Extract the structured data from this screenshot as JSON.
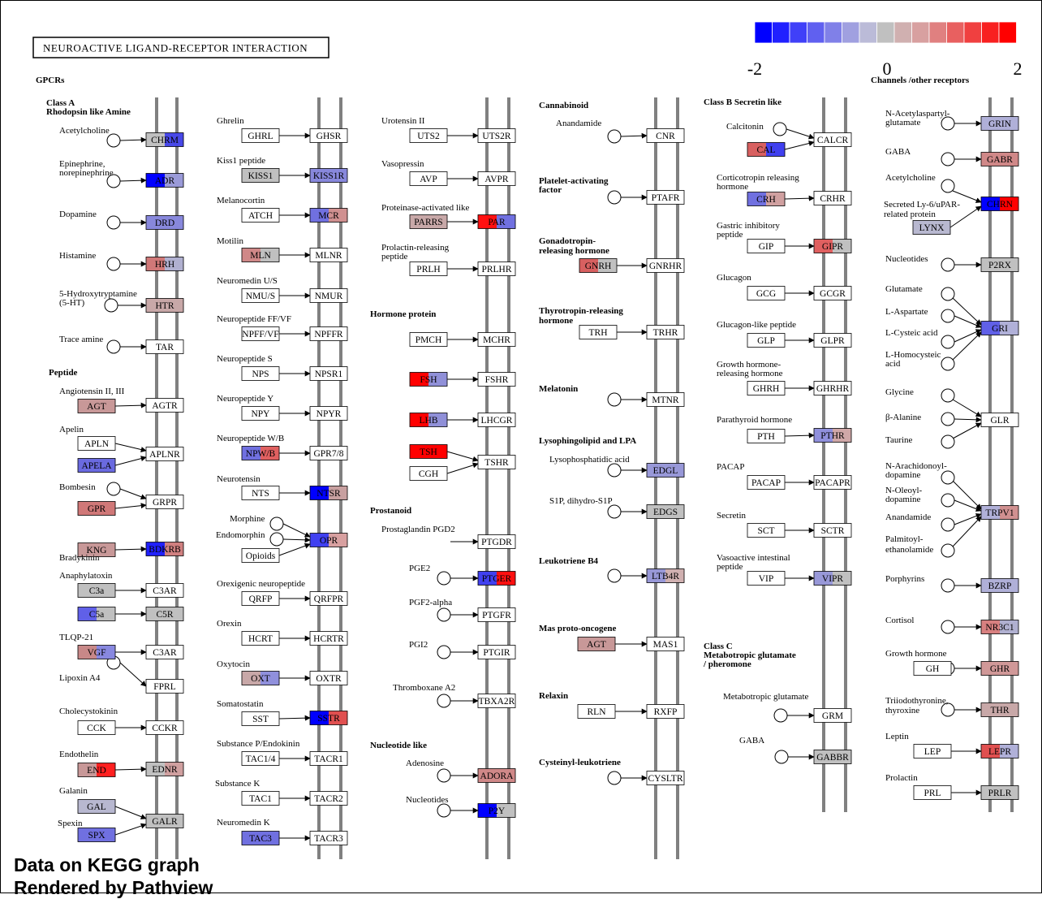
{
  "title": "NEUROACTIVE LIGAND-RECEPTOR INTERACTION",
  "legend": {
    "min": "-2",
    "mid": "0",
    "max": "2",
    "colors": [
      "#0000ff",
      "#2020ff",
      "#4040f8",
      "#6060f0",
      "#8080e8",
      "#a0a0e0",
      "#bbbbd8",
      "#c0c0c0",
      "#d0b0b0",
      "#d8a0a0",
      "#e08080",
      "#e86060",
      "#f04040",
      "#f82020",
      "#ff0000"
    ]
  },
  "footer": {
    "line1": "Data on KEGG graph",
    "line2": "Rendered by Pathview"
  },
  "headings": [
    {
      "text": "GPCRs"
    },
    {
      "text": "Class A"
    },
    {
      "text": "Rhodopsin like Amine"
    },
    {
      "text": "Peptide"
    },
    {
      "text": "Hormone protein"
    },
    {
      "text": "Prostanoid"
    },
    {
      "text": "Nucleotide like"
    },
    {
      "text": "Cannabinoid"
    },
    {
      "text": "Platelet-activating"
    },
    {
      "text": "factor"
    },
    {
      "text": "Gonadotropin-"
    },
    {
      "text": "releasing hormone"
    },
    {
      "text": "Thyrotropin-releasing"
    },
    {
      "text": "hormone"
    },
    {
      "text": "Melatonin"
    },
    {
      "text": "Lysophingolipid and LPA"
    },
    {
      "text": "Leukotriene B4"
    },
    {
      "text": "Mas proto-oncogene"
    },
    {
      "text": "Relaxin"
    },
    {
      "text": "Cysteinyl-leukotriene"
    },
    {
      "text": "Class B Secretin like"
    },
    {
      "text": "Class C"
    },
    {
      "text": "Metabotropic glutamate"
    },
    {
      "text": "/ pheromone"
    },
    {
      "text": "Channels /other receptors"
    }
  ],
  "labels": [
    "Acetylcholine",
    "Epinephrine,",
    "norepinephrine",
    "Dopamine",
    "Histamine",
    "5-Hydroxytryptamine",
    "(5-HT)",
    "Trace amine",
    "Angiotensin II, III",
    "Apelin",
    "Bombesin",
    "Bradykinin",
    "Anaphylatoxin",
    "TLQP-21",
    "Lipoxin A4",
    "Cholecystokinin",
    "Endothelin",
    "Galanin",
    "Spexin",
    "Ghrelin",
    "Kiss1 peptide",
    "Melanocortin",
    "Motilin",
    "Neuromedin U/S",
    "Neuropeptide FF/VF",
    "Neuropeptide S",
    "Neuropeptide Y",
    "Neuropeptide W/B",
    "Neurotensin",
    "Morphine",
    "Endomorphin",
    "Orexigenic neuropeptide",
    "Orexin",
    "Oxytocin",
    "Somatostatin",
    "Substance P/Endokinin",
    "Substance K",
    "Neuromedin K",
    "Urotensin II",
    "Vasopressin",
    "Proteinase-activated like",
    "Prolactin-releasing",
    "peptide",
    "Prostaglandin PGD2",
    "PGE2",
    "PGF2-alpha",
    "PGI2",
    "Thromboxane A2",
    "Adenosine",
    "Nucleotides",
    "Anandamide",
    "Lysophosphatidic acid",
    "S1P, dihydro-S1P",
    "Calcitonin",
    "Corticotropin releasing",
    "hormone",
    "Gastric inhibitory",
    "peptide",
    "Glucagon",
    "Glucagon-like peptide",
    "Growth hormone-",
    "releasing hormone",
    "Parathyroid hormone",
    "PACAP",
    "Secretin",
    "Vasoactive intestinal",
    "peptide",
    "Metabotropic glutamate",
    "GABA",
    "N-Acetylaspartyl-",
    "glutamate",
    "GABA",
    "Acetylcholine",
    "Secreted Ly-6/uPAR-",
    "related protein",
    "Nucleotides",
    "Glutamate",
    "L-Aspartate",
    "L-Cysteic acid",
    "L-Homocysteic",
    "acid",
    "Glycine",
    "β-Alanine",
    "Taurine",
    "N-Arachidonoyl-",
    "dopamine",
    "N-Oleoyl-",
    "dopamine",
    "Anandamide",
    "Palmitoyl-",
    "ethanolamide",
    "Porphyrins",
    "Cortisol",
    "Growth hormone",
    "Triiodothyronine,",
    "thyroxine",
    "Leptin",
    "Prolactin"
  ],
  "genes": [
    {
      "name": "CHRM",
      "colors": [
        "#c0c0c0",
        "#4848e8"
      ]
    },
    {
      "name": "ADR",
      "colors": [
        "#0000ff",
        "#9a9ad8"
      ]
    },
    {
      "name": "DRD",
      "colors": [
        "#8888dc"
      ]
    },
    {
      "name": "HRH",
      "colors": [
        "#d07878",
        "#b0b0d0"
      ]
    },
    {
      "name": "HTR",
      "colors": [
        "#c8a8a8"
      ]
    },
    {
      "name": "TAR",
      "colors": [
        "#ffffff"
      ]
    },
    {
      "name": "AGT",
      "colors": [
        "#c89898"
      ]
    },
    {
      "name": "AGTR",
      "colors": [
        "#ffffff"
      ]
    },
    {
      "name": "APLN",
      "colors": [
        "#ffffff"
      ]
    },
    {
      "name": "APELA",
      "colors": [
        "#6a6ae0"
      ]
    },
    {
      "name": "APLNR",
      "colors": [
        "#ffffff"
      ]
    },
    {
      "name": "GPR",
      "colors": [
        "#d07878"
      ]
    },
    {
      "name": "GRPR",
      "colors": [
        "#ffffff"
      ]
    },
    {
      "name": "KNG",
      "colors": [
        "#c89898"
      ]
    },
    {
      "name": "BDKRB",
      "colors": [
        "#2020ff",
        "#d08080"
      ]
    },
    {
      "name": "C3a",
      "colors": [
        "#c0c0c0"
      ]
    },
    {
      "name": "C3AR",
      "colors": [
        "#ffffff"
      ]
    },
    {
      "name": "C5a",
      "colors": [
        "#6060e8",
        "#c0c0c0"
      ]
    },
    {
      "name": "C5R",
      "colors": [
        "#c0c0c0"
      ]
    },
    {
      "name": "VGF",
      "colors": [
        "#c88888",
        "#8888e0"
      ]
    },
    {
      "name": "C3AR",
      "colors": [
        "#ffffff"
      ]
    },
    {
      "name": "FPRL",
      "colors": [
        "#ffffff"
      ]
    },
    {
      "name": "CCK",
      "colors": [
        "#ffffff"
      ]
    },
    {
      "name": "CCKR",
      "colors": [
        "#ffffff"
      ]
    },
    {
      "name": "END",
      "colors": [
        "#c89898",
        "#ff2020"
      ]
    },
    {
      "name": "EDNR",
      "colors": [
        "#c0c0c0",
        "#d0a0a0"
      ]
    },
    {
      "name": "GAL",
      "colors": [
        "#b8b8d0"
      ]
    },
    {
      "name": "SPX",
      "colors": [
        "#7070e0"
      ]
    },
    {
      "name": "GALR",
      "colors": [
        "#c0c0c0"
      ]
    },
    {
      "name": "GHRL",
      "colors": [
        "#ffffff"
      ]
    },
    {
      "name": "GHSR",
      "colors": [
        "#ffffff"
      ]
    },
    {
      "name": "KISS1",
      "colors": [
        "#c0c0c0"
      ]
    },
    {
      "name": "KISS1R",
      "colors": [
        "#8888dc"
      ]
    },
    {
      "name": "ATCH",
      "colors": [
        "#ffffff"
      ]
    },
    {
      "name": "MCR",
      "colors": [
        "#7070e0",
        "#d09090"
      ]
    },
    {
      "name": "MLN",
      "colors": [
        "#d08888",
        "#c0c0c0"
      ]
    },
    {
      "name": "MLNR",
      "colors": [
        "#ffffff"
      ]
    },
    {
      "name": "NMU/S",
      "colors": [
        "#ffffff"
      ]
    },
    {
      "name": "NMUR",
      "colors": [
        "#ffffff"
      ]
    },
    {
      "name": "NPFF/VF",
      "colors": [
        "#ffffff"
      ]
    },
    {
      "name": "NPFFR",
      "colors": [
        "#ffffff"
      ]
    },
    {
      "name": "NPS",
      "colors": [
        "#ffffff"
      ]
    },
    {
      "name": "NPSR1",
      "colors": [
        "#ffffff"
      ]
    },
    {
      "name": "NPY",
      "colors": [
        "#ffffff"
      ]
    },
    {
      "name": "NPYR",
      "colors": [
        "#ffffff"
      ]
    },
    {
      "name": "NPW/B",
      "colors": [
        "#7070e0",
        "#e06060"
      ]
    },
    {
      "name": "GPR7/8",
      "colors": [
        "#ffffff"
      ]
    },
    {
      "name": "NTS",
      "colors": [
        "#ffffff"
      ]
    },
    {
      "name": "NTSR",
      "colors": [
        "#0000ff",
        "#c8a0a0"
      ]
    },
    {
      "name": "OPR",
      "colors": [
        "#4040f0",
        "#d8a0a0"
      ]
    },
    {
      "name": "Opioids",
      "colors": [
        "#ffffff"
      ]
    },
    {
      "name": "QRFP",
      "colors": [
        "#ffffff"
      ]
    },
    {
      "name": "QRFPR",
      "colors": [
        "#ffffff"
      ]
    },
    {
      "name": "HCRT",
      "colors": [
        "#ffffff"
      ]
    },
    {
      "name": "HCRTR",
      "colors": [
        "#ffffff"
      ]
    },
    {
      "name": "OXT",
      "colors": [
        "#c8a8a8",
        "#9090dc"
      ]
    },
    {
      "name": "OXTR",
      "colors": [
        "#ffffff"
      ]
    },
    {
      "name": "SST",
      "colors": [
        "#ffffff"
      ]
    },
    {
      "name": "SSTR",
      "colors": [
        "#0000ff",
        "#e05050"
      ]
    },
    {
      "name": "TAC1/4",
      "colors": [
        "#ffffff"
      ]
    },
    {
      "name": "TACR1",
      "colors": [
        "#ffffff"
      ]
    },
    {
      "name": "TAC1",
      "colors": [
        "#ffffff"
      ]
    },
    {
      "name": "TACR2",
      "colors": [
        "#ffffff"
      ]
    },
    {
      "name": "TAC3",
      "colors": [
        "#7070e0"
      ]
    },
    {
      "name": "TACR3",
      "colors": [
        "#ffffff"
      ]
    },
    {
      "name": "UTS2",
      "colors": [
        "#ffffff"
      ]
    },
    {
      "name": "UTS2R",
      "colors": [
        "#ffffff"
      ]
    },
    {
      "name": "AVP",
      "colors": [
        "#ffffff"
      ]
    },
    {
      "name": "AVPR",
      "colors": [
        "#ffffff"
      ]
    },
    {
      "name": "PARRS",
      "colors": [
        "#c8a8a8"
      ]
    },
    {
      "name": "PAR",
      "colors": [
        "#ff1010",
        "#7070e0"
      ]
    },
    {
      "name": "PRLH",
      "colors": [
        "#ffffff"
      ]
    },
    {
      "name": "PRLHR",
      "colors": [
        "#ffffff"
      ]
    },
    {
      "name": "PMCH",
      "colors": [
        "#ffffff"
      ]
    },
    {
      "name": "MCHR",
      "colors": [
        "#ffffff"
      ]
    },
    {
      "name": "FSH",
      "colors": [
        "#ff0000",
        "#9090d8"
      ]
    },
    {
      "name": "FSHR",
      "colors": [
        "#ffffff"
      ]
    },
    {
      "name": "LHB",
      "colors": [
        "#ff0000",
        "#9090d8"
      ]
    },
    {
      "name": "LHCGR",
      "colors": [
        "#ffffff"
      ]
    },
    {
      "name": "TSH",
      "colors": [
        "#ff0000"
      ]
    },
    {
      "name": "CGH",
      "colors": [
        "#ffffff"
      ]
    },
    {
      "name": "TSHR",
      "colors": [
        "#ffffff"
      ]
    },
    {
      "name": "PTGDR",
      "colors": [
        "#ffffff"
      ]
    },
    {
      "name": "PTGER",
      "colors": [
        "#4040f0",
        "#ff1010"
      ]
    },
    {
      "name": "PTGFR",
      "colors": [
        "#ffffff"
      ]
    },
    {
      "name": "PTGIR",
      "colors": [
        "#ffffff"
      ]
    },
    {
      "name": "TBXA2R",
      "colors": [
        "#ffffff"
      ]
    },
    {
      "name": "ADORA",
      "colors": [
        "#d08888"
      ]
    },
    {
      "name": "P2Y",
      "colors": [
        "#0000ff",
        "#c0c0c0"
      ]
    },
    {
      "name": "CNR",
      "colors": [
        "#ffffff"
      ]
    },
    {
      "name": "PTAFR",
      "colors": [
        "#ffffff"
      ]
    },
    {
      "name": "GNRH",
      "colors": [
        "#d86060",
        "#c0c0c0"
      ]
    },
    {
      "name": "GNRHR",
      "colors": [
        "#ffffff"
      ]
    },
    {
      "name": "TRH",
      "colors": [
        "#ffffff"
      ]
    },
    {
      "name": "TRHR",
      "colors": [
        "#ffffff"
      ]
    },
    {
      "name": "MTNR",
      "colors": [
        "#ffffff"
      ]
    },
    {
      "name": "EDGL",
      "colors": [
        "#9898d8"
      ]
    },
    {
      "name": "EDGS",
      "colors": [
        "#c0c0c0"
      ]
    },
    {
      "name": "LTB4R",
      "colors": [
        "#9898d8",
        "#d0b0b0"
      ]
    },
    {
      "name": "AGT",
      "colors": [
        "#c89898"
      ]
    },
    {
      "name": "MAS1",
      "colors": [
        "#ffffff"
      ]
    },
    {
      "name": "RLN",
      "colors": [
        "#ffffff"
      ]
    },
    {
      "name": "RXFP",
      "colors": [
        "#ffffff"
      ]
    },
    {
      "name": "CYSLTR",
      "colors": [
        "#ffffff"
      ]
    },
    {
      "name": "CALCR",
      "colors": [
        "#ffffff"
      ]
    },
    {
      "name": "CAL",
      "colors": [
        "#d86060",
        "#4040f0"
      ]
    },
    {
      "name": "CRH",
      "colors": [
        "#7070e0",
        "#d0a0a0"
      ]
    },
    {
      "name": "CRHR",
      "colors": [
        "#ffffff"
      ]
    },
    {
      "name": "GIP",
      "colors": [
        "#ffffff"
      ]
    },
    {
      "name": "GIPR",
      "colors": [
        "#e06060",
        "#c0c0c0"
      ]
    },
    {
      "name": "GCG",
      "colors": [
        "#ffffff"
      ]
    },
    {
      "name": "GCGR",
      "colors": [
        "#ffffff"
      ]
    },
    {
      "name": "GLP",
      "colors": [
        "#ffffff"
      ]
    },
    {
      "name": "GLPR",
      "colors": [
        "#ffffff"
      ]
    },
    {
      "name": "GHRH",
      "colors": [
        "#ffffff"
      ]
    },
    {
      "name": "GHRHR",
      "colors": [
        "#ffffff"
      ]
    },
    {
      "name": "PTH",
      "colors": [
        "#ffffff"
      ]
    },
    {
      "name": "PTHR",
      "colors": [
        "#9090dc",
        "#d0a8a8"
      ]
    },
    {
      "name": "PACAP",
      "colors": [
        "#ffffff"
      ]
    },
    {
      "name": "PACAPR",
      "colors": [
        "#ffffff"
      ]
    },
    {
      "name": "SCT",
      "colors": [
        "#ffffff"
      ]
    },
    {
      "name": "SCTR",
      "colors": [
        "#ffffff"
      ]
    },
    {
      "name": "VIP",
      "colors": [
        "#ffffff"
      ]
    },
    {
      "name": "VIPR",
      "colors": [
        "#9898d8",
        "#c0c0c0"
      ]
    },
    {
      "name": "GRM",
      "colors": [
        "#ffffff"
      ]
    },
    {
      "name": "GABBR",
      "colors": [
        "#c0c0c0"
      ]
    },
    {
      "name": "GRIN",
      "colors": [
        "#b0b0d8"
      ]
    },
    {
      "name": "GABR",
      "colors": [
        "#d08888"
      ]
    },
    {
      "name": "CHRN",
      "colors": [
        "#0000ff",
        "#ff0000"
      ]
    },
    {
      "name": "LYNX",
      "colors": [
        "#b8b8d0"
      ]
    },
    {
      "name": "P2RX",
      "colors": [
        "#c0c0c0"
      ]
    },
    {
      "name": "GRI",
      "colors": [
        "#6060e8",
        "#b0b0d8"
      ]
    },
    {
      "name": "GLR",
      "colors": [
        "#ffffff"
      ]
    },
    {
      "name": "TRPV1",
      "colors": [
        "#b0b0d8",
        "#d09090"
      ]
    },
    {
      "name": "BZRP",
      "colors": [
        "#b0b0d8"
      ]
    },
    {
      "name": "NR3C1",
      "colors": [
        "#d88080",
        "#b0b0d0"
      ]
    },
    {
      "name": "GH",
      "colors": [
        "#ffffff"
      ]
    },
    {
      "name": "GHR",
      "colors": [
        "#d09898"
      ]
    },
    {
      "name": "THR",
      "colors": [
        "#c8a8a8"
      ]
    },
    {
      "name": "LEP",
      "colors": [
        "#ffffff"
      ]
    },
    {
      "name": "LEPR",
      "colors": [
        "#e05050",
        "#b0b0d8"
      ]
    },
    {
      "name": "PRL",
      "colors": [
        "#ffffff"
      ]
    },
    {
      "name": "PRLR",
      "colors": [
        "#c0c0c0"
      ]
    }
  ]
}
